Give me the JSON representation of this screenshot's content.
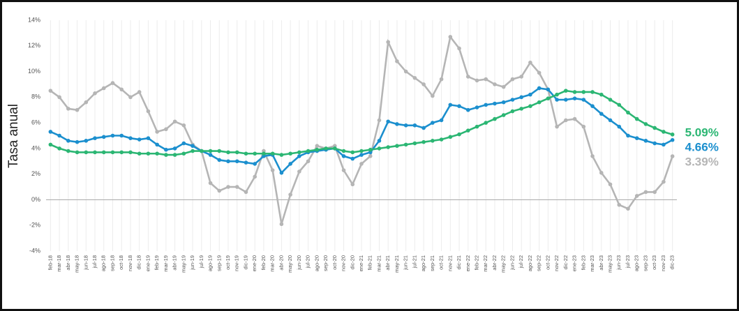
{
  "chart_data": {
    "type": "line",
    "y_label": "Tasa anual",
    "categories": [
      "feb-18",
      "mar-18",
      "abr-18",
      "may-18",
      "jun-18",
      "jul-18",
      "ago-18",
      "sep-18",
      "oct-18",
      "nov-18",
      "dic-18",
      "ene-19",
      "feb-19",
      "mar-19",
      "abr-19",
      "may-19",
      "jun-19",
      "jul-19",
      "ago-19",
      "sep-19",
      "oct-19",
      "nov-19",
      "dic-19",
      "ene-20",
      "feb-20",
      "mar-20",
      "abr-20",
      "may-20",
      "jun-20",
      "jul-20",
      "ago-20",
      "sep-20",
      "oct-20",
      "nov-20",
      "dic-20",
      "ene-21",
      "feb-21",
      "mar-21",
      "abr-21",
      "may-21",
      "jun-21",
      "jul-21",
      "ago-21",
      "sep-21",
      "oct-21",
      "nov-21",
      "dic-21",
      "ene-22",
      "feb-22",
      "mar-22",
      "abr-22",
      "may-22",
      "jun-22",
      "jul-22",
      "ago-22",
      "sep-22",
      "oct-22",
      "nov-22",
      "dic-22",
      "ene-23",
      "feb-23",
      "mar-23",
      "abr-23",
      "may-23",
      "jun-23",
      "jul-23",
      "ago-23",
      "sep-23",
      "oct-23",
      "nov-23",
      "dic-23"
    ],
    "series": [
      {
        "color": "#b5b5b5",
        "values": [
          8.5,
          8.0,
          7.1,
          7.0,
          7.6,
          8.3,
          8.7,
          9.1,
          8.6,
          8.0,
          8.4,
          6.9,
          5.3,
          5.5,
          6.1,
          5.8,
          4.3,
          3.8,
          1.3,
          0.7,
          1.0,
          1.0,
          0.6,
          1.8,
          3.8,
          2.3,
          -1.9,
          0.4,
          2.2,
          3.0,
          4.2,
          4.0,
          4.2,
          2.3,
          1.2,
          2.8,
          3.4,
          6.2,
          12.3,
          10.8,
          10.0,
          9.5,
          9.0,
          8.1,
          9.4,
          12.7,
          11.8,
          9.6,
          9.3,
          9.4,
          9.0,
          8.8,
          9.4,
          9.6,
          10.7,
          9.9,
          8.6,
          5.7,
          6.2,
          6.3,
          5.7,
          3.4,
          2.1,
          1.2,
          -0.4,
          -0.7,
          0.3,
          0.6,
          0.6,
          1.4,
          3.39
        ],
        "value_labels": [
          null,
          null,
          null,
          null,
          null,
          null,
          null,
          null,
          null,
          null,
          null,
          null,
          null,
          null,
          null,
          null,
          null,
          null,
          null,
          null,
          null,
          null,
          null,
          null,
          null,
          null,
          null,
          null,
          null,
          null,
          null,
          null,
          null,
          null,
          null,
          null,
          null,
          null,
          null,
          null,
          null,
          null,
          null,
          null,
          null,
          null,
          null,
          null,
          null,
          null,
          null,
          null,
          null,
          null,
          null,
          null,
          null,
          null,
          null,
          null,
          null,
          null,
          null,
          null,
          null,
          null,
          null,
          null,
          null,
          null,
          "3.39%"
        ]
      },
      {
        "color": "#1b8fce",
        "values": [
          5.3,
          5.0,
          4.6,
          4.5,
          4.6,
          4.8,
          4.9,
          5.0,
          5.0,
          4.8,
          4.7,
          4.8,
          4.3,
          3.9,
          4.0,
          4.4,
          4.2,
          3.8,
          3.5,
          3.1,
          3.0,
          3.0,
          2.9,
          2.8,
          3.4,
          3.5,
          2.1,
          2.8,
          3.4,
          3.7,
          3.8,
          3.9,
          4.0,
          3.4,
          3.2,
          3.5,
          3.7,
          4.6,
          6.1,
          5.9,
          5.8,
          5.8,
          5.6,
          6.0,
          6.2,
          7.4,
          7.3,
          7.0,
          7.2,
          7.4,
          7.5,
          7.6,
          7.8,
          8.0,
          8.2,
          8.7,
          8.6,
          7.8,
          7.8,
          7.9,
          7.8,
          7.3,
          6.7,
          6.2,
          5.7,
          5.0,
          4.8,
          4.6,
          4.4,
          4.3,
          4.66
        ],
        "value_labels": [
          null,
          null,
          null,
          null,
          null,
          null,
          null,
          null,
          null,
          null,
          null,
          null,
          null,
          null,
          null,
          null,
          null,
          null,
          null,
          null,
          null,
          null,
          null,
          null,
          null,
          null,
          null,
          null,
          null,
          null,
          null,
          null,
          null,
          null,
          null,
          null,
          null,
          null,
          null,
          null,
          null,
          null,
          null,
          null,
          null,
          null,
          null,
          null,
          null,
          null,
          null,
          null,
          null,
          null,
          null,
          null,
          null,
          null,
          null,
          null,
          null,
          null,
          null,
          null,
          null,
          null,
          null,
          null,
          null,
          null,
          "4.66%"
        ]
      },
      {
        "color": "#2bb673",
        "values": [
          4.3,
          4.0,
          3.8,
          3.7,
          3.7,
          3.7,
          3.7,
          3.7,
          3.7,
          3.7,
          3.6,
          3.6,
          3.6,
          3.5,
          3.5,
          3.6,
          3.8,
          3.8,
          3.8,
          3.8,
          3.7,
          3.7,
          3.6,
          3.6,
          3.6,
          3.6,
          3.5,
          3.6,
          3.7,
          3.8,
          3.9,
          4.0,
          4.0,
          3.8,
          3.7,
          3.8,
          3.9,
          4.0,
          4.1,
          4.2,
          4.3,
          4.4,
          4.5,
          4.6,
          4.7,
          4.9,
          5.1,
          5.4,
          5.7,
          6.0,
          6.3,
          6.6,
          6.9,
          7.1,
          7.3,
          7.6,
          7.9,
          8.2,
          8.5,
          8.4,
          8.4,
          8.4,
          8.2,
          7.8,
          7.4,
          6.8,
          6.3,
          5.9,
          5.6,
          5.3,
          5.09
        ],
        "value_labels": [
          null,
          null,
          null,
          null,
          null,
          null,
          null,
          null,
          null,
          null,
          null,
          null,
          null,
          null,
          null,
          null,
          null,
          null,
          null,
          null,
          null,
          null,
          null,
          null,
          null,
          null,
          null,
          null,
          null,
          null,
          null,
          null,
          null,
          null,
          null,
          null,
          null,
          null,
          null,
          null,
          null,
          null,
          null,
          null,
          null,
          null,
          null,
          null,
          null,
          null,
          null,
          null,
          null,
          null,
          null,
          null,
          null,
          null,
          null,
          null,
          null,
          null,
          null,
          null,
          null,
          null,
          null,
          null,
          null,
          null,
          "5.09%"
        ]
      }
    ],
    "ylim": [
      -4,
      14
    ],
    "yticks": [
      {
        "value": -4,
        "label": "-4%"
      },
      {
        "value": -2,
        "label": "-2%"
      },
      {
        "value": 0,
        "label": "0%"
      },
      {
        "value": 2,
        "label": "2%"
      },
      {
        "value": 4,
        "label": "4%"
      },
      {
        "value": 6,
        "label": "6%"
      },
      {
        "value": 8,
        "label": "8%"
      },
      {
        "value": 10,
        "label": "10%"
      },
      {
        "value": 12,
        "label": "12%"
      },
      {
        "value": 14,
        "label": "14%"
      }
    ],
    "grid": "x"
  }
}
